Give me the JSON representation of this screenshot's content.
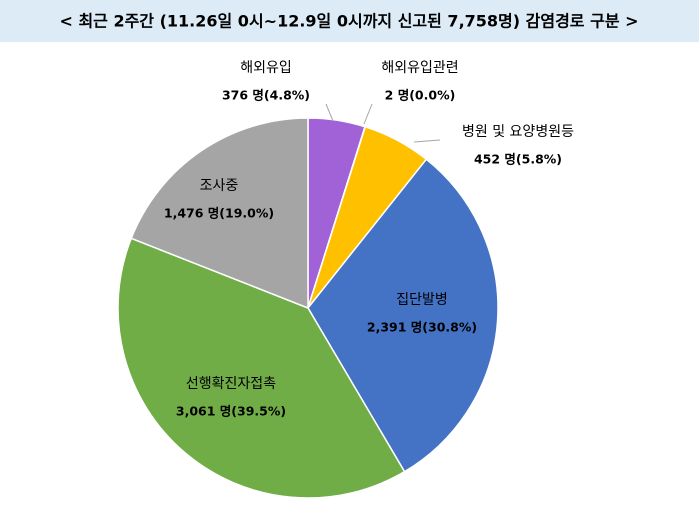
{
  "chart_data": {
    "type": "pie",
    "title": "< 최근 2주간 (11.26일 0시~12.9일 0시까지 신고된 7,758명) 감염경로 구분 >",
    "categories": [
      "해외유입",
      "해외유입관련",
      "병원 및 요양병원등",
      "집단발병",
      "선행확진자접촉",
      "조사중"
    ],
    "values": [
      376,
      2,
      452,
      2391,
      3061,
      1476
    ],
    "value_labels": [
      "376 명(4.8%)",
      "2 명(0.0%)",
      "452 명(5.8%)",
      "2,391 명(30.8%)",
      "3,061 명(39.5%)",
      "1,476 명(19.0%)"
    ],
    "colors": [
      "#a062d6",
      "#5b9bd5",
      "#ffc000",
      "#4472c4",
      "#70ad47",
      "#a5a5a5"
    ]
  }
}
